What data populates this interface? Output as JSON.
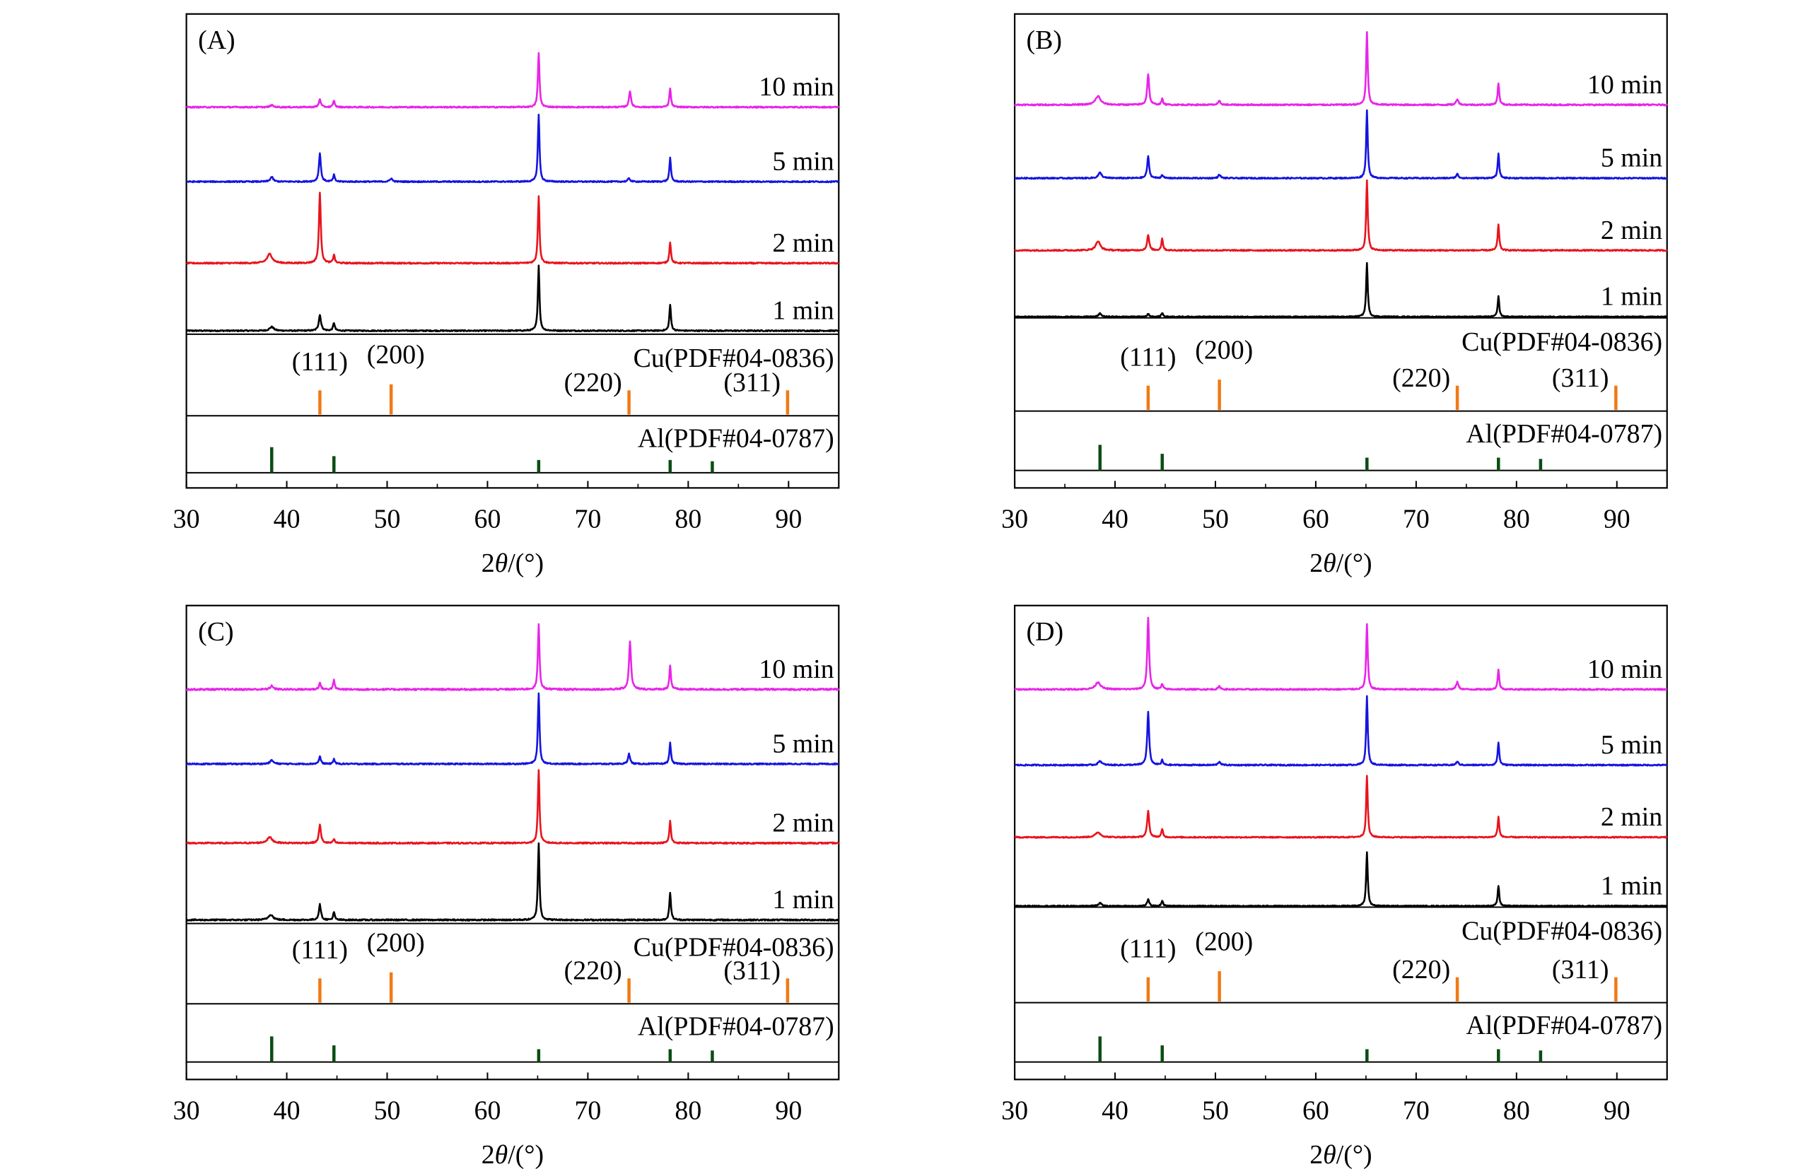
{
  "chart_data": [
    {
      "type": "line",
      "panel_label": "(A)",
      "xlabel_prefix": "2",
      "xlabel_theta": "θ",
      "xlabel_suffix": "/(°)",
      "xlim": [
        30,
        95
      ],
      "xticks": [
        30,
        40,
        50,
        60,
        70,
        80,
        90
      ],
      "series": [
        {
          "name": "1 min",
          "color": "#000000",
          "peaks": [
            {
              "x": 38.5,
              "h": 0.06,
              "w": 0.35
            },
            {
              "x": 43.3,
              "h": 0.24,
              "w": 0.2
            },
            {
              "x": 44.7,
              "h": 0.12,
              "w": 0.15
            },
            {
              "x": 65.1,
              "h": 1.0,
              "w": 0.14
            },
            {
              "x": 78.2,
              "h": 0.4,
              "w": 0.14
            }
          ]
        },
        {
          "name": "2 min",
          "color": "#e8141c",
          "peaks": [
            {
              "x": 38.3,
              "h": 0.13,
              "w": 0.45
            },
            {
              "x": 43.3,
              "h": 1.0,
              "w": 0.16
            },
            {
              "x": 44.7,
              "h": 0.12,
              "w": 0.14
            },
            {
              "x": 65.1,
              "h": 0.95,
              "w": 0.14
            },
            {
              "x": 78.2,
              "h": 0.3,
              "w": 0.14
            }
          ]
        },
        {
          "name": "5 min",
          "color": "#1414e0",
          "peaks": [
            {
              "x": 38.5,
              "h": 0.07,
              "w": 0.25
            },
            {
              "x": 43.3,
              "h": 0.42,
              "w": 0.17
            },
            {
              "x": 44.7,
              "h": 0.1,
              "w": 0.14
            },
            {
              "x": 50.4,
              "h": 0.05,
              "w": 0.2
            },
            {
              "x": 65.1,
              "h": 1.0,
              "w": 0.14
            },
            {
              "x": 74.1,
              "h": 0.05,
              "w": 0.2
            },
            {
              "x": 78.2,
              "h": 0.35,
              "w": 0.14
            }
          ]
        },
        {
          "name": "10 min",
          "color": "#e825e8",
          "peaks": [
            {
              "x": 38.5,
              "h": 0.03,
              "w": 0.25
            },
            {
              "x": 43.3,
              "h": 0.12,
              "w": 0.17
            },
            {
              "x": 44.7,
              "h": 0.1,
              "w": 0.14
            },
            {
              "x": 65.1,
              "h": 0.8,
              "w": 0.14
            },
            {
              "x": 74.2,
              "h": 0.24,
              "w": 0.17
            },
            {
              "x": 78.2,
              "h": 0.28,
              "w": 0.14
            }
          ]
        }
      ],
      "cu_ref": {
        "label": "Cu(PDF#04-0836)",
        "color": "#f07a14",
        "peaks": [
          {
            "x": 43.3,
            "h": 0.8,
            "hkl": "(111)"
          },
          {
            "x": 50.4,
            "h": 1.0,
            "hkl": "(200)"
          },
          {
            "x": 74.1,
            "h": 0.8,
            "hkl": "(220)"
          },
          {
            "x": 89.9,
            "h": 0.8,
            "hkl": "(311)"
          }
        ]
      },
      "al_ref": {
        "label": "Al(PDF#04-0787)",
        "color": "#0b4d14",
        "peaks": [
          {
            "x": 38.5,
            "h": 1.0
          },
          {
            "x": 44.7,
            "h": 0.65
          },
          {
            "x": 65.1,
            "h": 0.5
          },
          {
            "x": 78.2,
            "h": 0.5
          },
          {
            "x": 82.4,
            "h": 0.45
          }
        ]
      }
    },
    {
      "type": "line",
      "panel_label": "(B)",
      "xlabel_prefix": "2",
      "xlabel_theta": "θ",
      "xlabel_suffix": "/(°)",
      "xlim": [
        30,
        95
      ],
      "xticks": [
        30,
        40,
        50,
        60,
        70,
        80,
        90
      ],
      "series": [
        {
          "name": "1 min",
          "color": "#000000",
          "peaks": [
            {
              "x": 38.5,
              "h": 0.06,
              "w": 0.25
            },
            {
              "x": 43.3,
              "h": 0.05,
              "w": 0.2
            },
            {
              "x": 44.7,
              "h": 0.07,
              "w": 0.15
            },
            {
              "x": 65.1,
              "h": 1.0,
              "w": 0.14
            },
            {
              "x": 78.2,
              "h": 0.38,
              "w": 0.14
            }
          ]
        },
        {
          "name": "2 min",
          "color": "#e8141c",
          "peaks": [
            {
              "x": 38.3,
              "h": 0.13,
              "w": 0.4
            },
            {
              "x": 43.3,
              "h": 0.22,
              "w": 0.18
            },
            {
              "x": 44.7,
              "h": 0.17,
              "w": 0.14
            },
            {
              "x": 65.1,
              "h": 1.0,
              "w": 0.14
            },
            {
              "x": 78.2,
              "h": 0.37,
              "w": 0.14
            }
          ]
        },
        {
          "name": "5 min",
          "color": "#1414e0",
          "peaks": [
            {
              "x": 38.5,
              "h": 0.08,
              "w": 0.3
            },
            {
              "x": 43.3,
              "h": 0.32,
              "w": 0.17
            },
            {
              "x": 44.7,
              "h": 0.05,
              "w": 0.14
            },
            {
              "x": 50.4,
              "h": 0.05,
              "w": 0.2
            },
            {
              "x": 65.1,
              "h": 1.0,
              "w": 0.14
            },
            {
              "x": 74.1,
              "h": 0.06,
              "w": 0.2
            },
            {
              "x": 78.2,
              "h": 0.36,
              "w": 0.14
            }
          ]
        },
        {
          "name": "10 min",
          "color": "#e825e8",
          "peaks": [
            {
              "x": 38.3,
              "h": 0.12,
              "w": 0.45
            },
            {
              "x": 43.3,
              "h": 0.43,
              "w": 0.17
            },
            {
              "x": 44.7,
              "h": 0.08,
              "w": 0.14
            },
            {
              "x": 50.4,
              "h": 0.05,
              "w": 0.2
            },
            {
              "x": 65.1,
              "h": 1.0,
              "w": 0.14
            },
            {
              "x": 74.1,
              "h": 0.08,
              "w": 0.2
            },
            {
              "x": 78.2,
              "h": 0.3,
              "w": 0.14
            }
          ]
        }
      ],
      "cu_ref": {
        "label": "Cu(PDF#04-0836)",
        "color": "#f07a14",
        "peaks": [
          {
            "x": 43.3,
            "h": 0.8,
            "hkl": "(111)"
          },
          {
            "x": 50.4,
            "h": 1.0,
            "hkl": "(200)"
          },
          {
            "x": 74.1,
            "h": 0.8,
            "hkl": "(220)"
          },
          {
            "x": 89.9,
            "h": 0.8,
            "hkl": "(311)"
          }
        ]
      },
      "al_ref": {
        "label": "Al(PDF#04-0787)",
        "color": "#0b4d14",
        "peaks": [
          {
            "x": 38.5,
            "h": 1.0
          },
          {
            "x": 44.7,
            "h": 0.65
          },
          {
            "x": 65.1,
            "h": 0.5
          },
          {
            "x": 78.2,
            "h": 0.5
          },
          {
            "x": 82.4,
            "h": 0.45
          }
        ]
      }
    },
    {
      "type": "line",
      "panel_label": "(C)",
      "xlabel_prefix": "2",
      "xlabel_theta": "θ",
      "xlabel_suffix": "/(°)",
      "xlim": [
        30,
        95
      ],
      "xticks": [
        30,
        40,
        50,
        60,
        70,
        80,
        90
      ],
      "series": [
        {
          "name": "1 min",
          "color": "#000000",
          "peaks": [
            {
              "x": 38.4,
              "h": 0.07,
              "w": 0.4
            },
            {
              "x": 43.3,
              "h": 0.2,
              "w": 0.18
            },
            {
              "x": 44.7,
              "h": 0.1,
              "w": 0.14
            },
            {
              "x": 65.1,
              "h": 1.0,
              "w": 0.14
            },
            {
              "x": 78.2,
              "h": 0.36,
              "w": 0.14
            }
          ]
        },
        {
          "name": "2 min",
          "color": "#e8141c",
          "peaks": [
            {
              "x": 38.3,
              "h": 0.08,
              "w": 0.45
            },
            {
              "x": 43.3,
              "h": 0.25,
              "w": 0.18
            },
            {
              "x": 44.7,
              "h": 0.05,
              "w": 0.14
            },
            {
              "x": 65.1,
              "h": 1.0,
              "w": 0.14
            },
            {
              "x": 78.2,
              "h": 0.3,
              "w": 0.14
            }
          ]
        },
        {
          "name": "5 min",
          "color": "#1414e0",
          "peaks": [
            {
              "x": 38.5,
              "h": 0.05,
              "w": 0.3
            },
            {
              "x": 43.3,
              "h": 0.1,
              "w": 0.17
            },
            {
              "x": 44.7,
              "h": 0.07,
              "w": 0.14
            },
            {
              "x": 65.1,
              "h": 1.0,
              "w": 0.14
            },
            {
              "x": 74.1,
              "h": 0.15,
              "w": 0.17
            },
            {
              "x": 78.2,
              "h": 0.3,
              "w": 0.14
            }
          ]
        },
        {
          "name": "10 min",
          "color": "#e825e8",
          "peaks": [
            {
              "x": 38.5,
              "h": 0.04,
              "w": 0.25
            },
            {
              "x": 43.3,
              "h": 0.07,
              "w": 0.17
            },
            {
              "x": 44.7,
              "h": 0.1,
              "w": 0.14
            },
            {
              "x": 65.1,
              "h": 0.72,
              "w": 0.14
            },
            {
              "x": 74.2,
              "h": 0.52,
              "w": 0.18
            },
            {
              "x": 78.2,
              "h": 0.26,
              "w": 0.14
            }
          ]
        }
      ],
      "cu_ref": {
        "label": "Cu(PDF#04-0836)",
        "color": "#f07a14",
        "peaks": [
          {
            "x": 43.3,
            "h": 0.8,
            "hkl": "(111)"
          },
          {
            "x": 50.4,
            "h": 1.0,
            "hkl": "(200)"
          },
          {
            "x": 74.1,
            "h": 0.8,
            "hkl": "(220)"
          },
          {
            "x": 89.9,
            "h": 0.8,
            "hkl": "(311)"
          }
        ]
      },
      "al_ref": {
        "label": "Al(PDF#04-0787)",
        "color": "#0b4d14",
        "peaks": [
          {
            "x": 38.5,
            "h": 1.0
          },
          {
            "x": 44.7,
            "h": 0.65
          },
          {
            "x": 65.1,
            "h": 0.5
          },
          {
            "x": 78.2,
            "h": 0.5
          },
          {
            "x": 82.4,
            "h": 0.45
          }
        ]
      }
    },
    {
      "type": "line",
      "panel_label": "(D)",
      "xlabel_prefix": "2",
      "xlabel_theta": "θ",
      "xlabel_suffix": "/(°)",
      "xlim": [
        30,
        95
      ],
      "xticks": [
        30,
        40,
        50,
        60,
        70,
        80,
        90
      ],
      "series": [
        {
          "name": "1 min",
          "color": "#000000",
          "peaks": [
            {
              "x": 38.5,
              "h": 0.06,
              "w": 0.25
            },
            {
              "x": 43.3,
              "h": 0.12,
              "w": 0.18
            },
            {
              "x": 44.7,
              "h": 0.1,
              "w": 0.14
            },
            {
              "x": 65.1,
              "h": 1.0,
              "w": 0.14
            },
            {
              "x": 78.2,
              "h": 0.38,
              "w": 0.14
            }
          ]
        },
        {
          "name": "2 min",
          "color": "#e8141c",
          "peaks": [
            {
              "x": 38.3,
              "h": 0.08,
              "w": 0.45
            },
            {
              "x": 43.3,
              "h": 0.42,
              "w": 0.18
            },
            {
              "x": 44.7,
              "h": 0.13,
              "w": 0.14
            },
            {
              "x": 65.1,
              "h": 1.0,
              "w": 0.14
            },
            {
              "x": 78.2,
              "h": 0.33,
              "w": 0.14
            }
          ]
        },
        {
          "name": "5 min",
          "color": "#1414e0",
          "peaks": [
            {
              "x": 38.5,
              "h": 0.06,
              "w": 0.3
            },
            {
              "x": 43.3,
              "h": 0.77,
              "w": 0.17
            },
            {
              "x": 44.7,
              "h": 0.07,
              "w": 0.14
            },
            {
              "x": 50.4,
              "h": 0.05,
              "w": 0.2
            },
            {
              "x": 65.1,
              "h": 1.0,
              "w": 0.14
            },
            {
              "x": 74.1,
              "h": 0.05,
              "w": 0.2
            },
            {
              "x": 78.2,
              "h": 0.33,
              "w": 0.14
            }
          ]
        },
        {
          "name": "10 min",
          "color": "#e825e8",
          "peaks": [
            {
              "x": 38.3,
              "h": 0.1,
              "w": 0.45
            },
            {
              "x": 43.3,
              "h": 1.0,
              "w": 0.16
            },
            {
              "x": 44.7,
              "h": 0.07,
              "w": 0.14
            },
            {
              "x": 50.4,
              "h": 0.04,
              "w": 0.2
            },
            {
              "x": 65.1,
              "h": 0.9,
              "w": 0.14
            },
            {
              "x": 74.1,
              "h": 0.1,
              "w": 0.2
            },
            {
              "x": 78.2,
              "h": 0.27,
              "w": 0.14
            }
          ]
        }
      ],
      "cu_ref": {
        "label": "Cu(PDF#04-0836)",
        "color": "#f07a14",
        "peaks": [
          {
            "x": 43.3,
            "h": 0.8,
            "hkl": "(111)"
          },
          {
            "x": 50.4,
            "h": 1.0,
            "hkl": "(200)"
          },
          {
            "x": 74.1,
            "h": 0.8,
            "hkl": "(220)"
          },
          {
            "x": 89.9,
            "h": 0.8,
            "hkl": "(311)"
          }
        ]
      },
      "al_ref": {
        "label": "Al(PDF#04-0787)",
        "color": "#0b4d14",
        "peaks": [
          {
            "x": 38.5,
            "h": 1.0
          },
          {
            "x": 44.7,
            "h": 0.65
          },
          {
            "x": 65.1,
            "h": 0.5
          },
          {
            "x": 78.2,
            "h": 0.5
          },
          {
            "x": 82.4,
            "h": 0.45
          }
        ]
      }
    }
  ]
}
